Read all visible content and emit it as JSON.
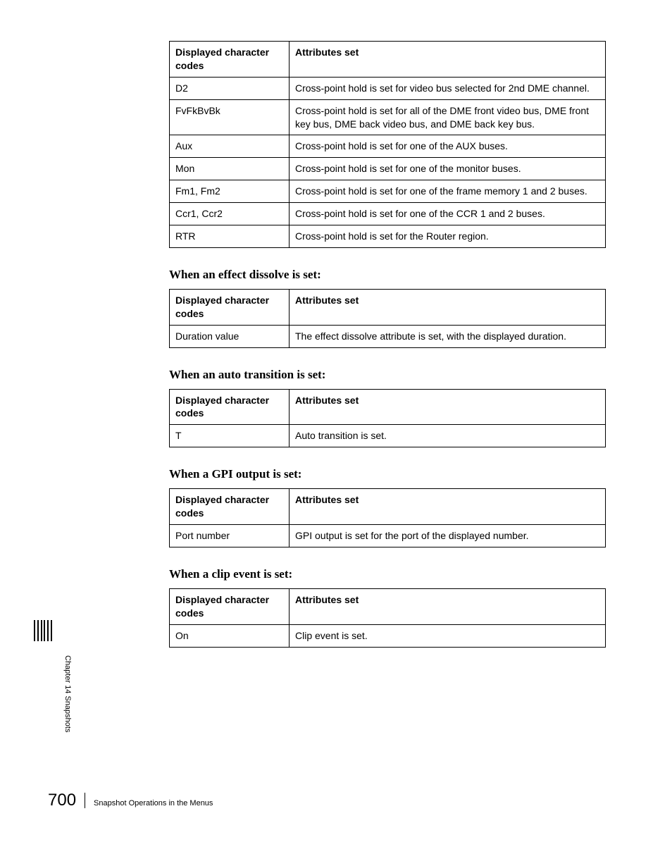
{
  "tables": {
    "main": {
      "header": {
        "c1": "Displayed character codes",
        "c2": "Attributes set"
      },
      "rows": [
        {
          "c1": "D2",
          "c2": "Cross-point hold is set for video bus selected for 2nd DME channel."
        },
        {
          "c1": "FvFkBvBk",
          "c2": "Cross-point hold is set for all of the DME front video bus, DME front key bus, DME back video bus, and DME back key bus."
        },
        {
          "c1": "Aux",
          "c2": "Cross-point hold is set for one of the AUX buses."
        },
        {
          "c1": "Mon",
          "c2": "Cross-point hold is set for one of the monitor buses."
        },
        {
          "c1": "Fm1, Fm2",
          "c2": "Cross-point hold is set for one of the frame memory 1 and 2 buses."
        },
        {
          "c1": "Ccr1, Ccr2",
          "c2": "Cross-point hold is set for one of the CCR 1 and 2 buses."
        },
        {
          "c1": "RTR",
          "c2": "Cross-point hold is set for the Router region."
        }
      ]
    },
    "dissolve": {
      "title": "When an effect dissolve is set:",
      "header": {
        "c1": "Displayed character codes",
        "c2": "Attributes set"
      },
      "rows": [
        {
          "c1": "Duration value",
          "c2": "The effect dissolve attribute is set, with the displayed duration."
        }
      ]
    },
    "autotrans": {
      "title": "When an auto transition is set:",
      "header": {
        "c1": "Displayed character codes",
        "c2": "Attributes set"
      },
      "rows": [
        {
          "c1": "T",
          "c2": "Auto transition is set."
        }
      ]
    },
    "gpi": {
      "title": "When a GPI output is set:",
      "header": {
        "c1": "Displayed character codes",
        "c2": "Attributes set"
      },
      "rows": [
        {
          "c1": "Port number",
          "c2": "GPI output is set for the port of the displayed number."
        }
      ]
    },
    "clip": {
      "title": "When a clip event is set:",
      "header": {
        "c1": "Displayed character codes",
        "c2": "Attributes set"
      },
      "rows": [
        {
          "c1": "On",
          "c2": "Clip event is set."
        }
      ]
    }
  },
  "side_label": "Chapter 14  Snapshots",
  "footer": {
    "page": "700",
    "text": "Snapshot Operations in the Menus"
  }
}
